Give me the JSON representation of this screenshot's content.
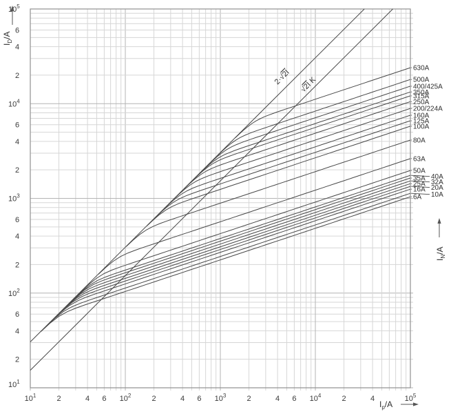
{
  "chart": {
    "background": "#ffffff",
    "grid_minor_color": "#d6d6d6",
    "grid_major_color": "#b3b3b3",
    "frame_color": "#8f8f8f",
    "curve_color": "#474747",
    "text_color": "#3a3a3a"
  },
  "chart_data": {
    "type": "line",
    "scale": "log-log",
    "xlabel": {
      "pre": "I",
      "sub": "p",
      "post": "/A"
    },
    "ylabel": {
      "pre": "I",
      "sub": "D",
      "post": "/A"
    },
    "family_label": {
      "pre": "I",
      "sub": "N",
      "post": "/A"
    },
    "xlim": [
      10,
      100000
    ],
    "ylim": [
      10,
      100000
    ],
    "x_decade_ticks": [
      10,
      100,
      1000,
      10000,
      100000
    ],
    "y_decade_ticks": [
      10,
      100,
      1000,
      10000,
      100000
    ],
    "x_minor_labeled_ticks": [
      20,
      40,
      60,
      200,
      400,
      600,
      2000,
      4000,
      6000,
      20000,
      40000
    ],
    "y_minor_labeled_ticks": [
      20,
      40,
      60,
      200,
      400,
      600,
      2000,
      4000,
      6000,
      20000,
      40000,
      60000
    ],
    "grid": "full log-log grid, minor lines 2-9 each decade",
    "reference_lines": [
      {
        "prefix": "2·√",
        "overline": "2I",
        "suffix": "",
        "factor": 3.05
      },
      {
        "prefix": "√",
        "overline": "2I",
        "suffix": " K",
        "factor": 1.53
      }
    ],
    "cutoff_slope_loglog": 0.3333,
    "curves": [
      {
        "rating": "630A",
        "ib_at_100kA": 24000,
        "label_col": 0
      },
      {
        "rating": "500A",
        "ib_at_100kA": 18000,
        "label_col": 0
      },
      {
        "rating": "400/425A",
        "ib_at_100kA": 15300,
        "label_col": 0
      },
      {
        "rating": "350A",
        "ib_at_100kA": 13300,
        "label_col": 0
      },
      {
        "rating": "315A",
        "ib_at_100kA": 12100,
        "label_col": 0
      },
      {
        "rating": "250A",
        "ib_at_100kA": 10500,
        "label_col": 0
      },
      {
        "rating": "200/224A",
        "ib_at_100kA": 8900,
        "label_col": 0
      },
      {
        "rating": "160A",
        "ib_at_100kA": 7550,
        "label_col": 0
      },
      {
        "rating": "125A",
        "ib_at_100kA": 6600,
        "label_col": 0
      },
      {
        "rating": "100A",
        "ib_at_100kA": 5780,
        "label_col": 0
      },
      {
        "rating": "80A",
        "ib_at_100kA": 4130,
        "label_col": 0
      },
      {
        "rating": "63A",
        "ib_at_100kA": 2630,
        "label_col": 0
      },
      {
        "rating": "50A",
        "ib_at_100kA": 1970,
        "label_col": 0
      },
      {
        "rating": "40A",
        "ib_at_100kA": 1750,
        "label_col": 1
      },
      {
        "rating": "35A",
        "ib_at_100kA": 1640,
        "label_col": 0
      },
      {
        "rating": "32A",
        "ib_at_100kA": 1530,
        "label_col": 1
      },
      {
        "rating": "25A",
        "ib_at_100kA": 1430,
        "label_col": 0
      },
      {
        "rating": "20A",
        "ib_at_100kA": 1340,
        "label_col": 1
      },
      {
        "rating": "16A",
        "ib_at_100kA": 1250,
        "label_col": 0
      },
      {
        "rating": "10A",
        "ib_at_100kA": 1130,
        "label_col": 1
      },
      {
        "rating": "6A",
        "ib_at_100kA": 1040,
        "label_col": 0
      }
    ]
  }
}
